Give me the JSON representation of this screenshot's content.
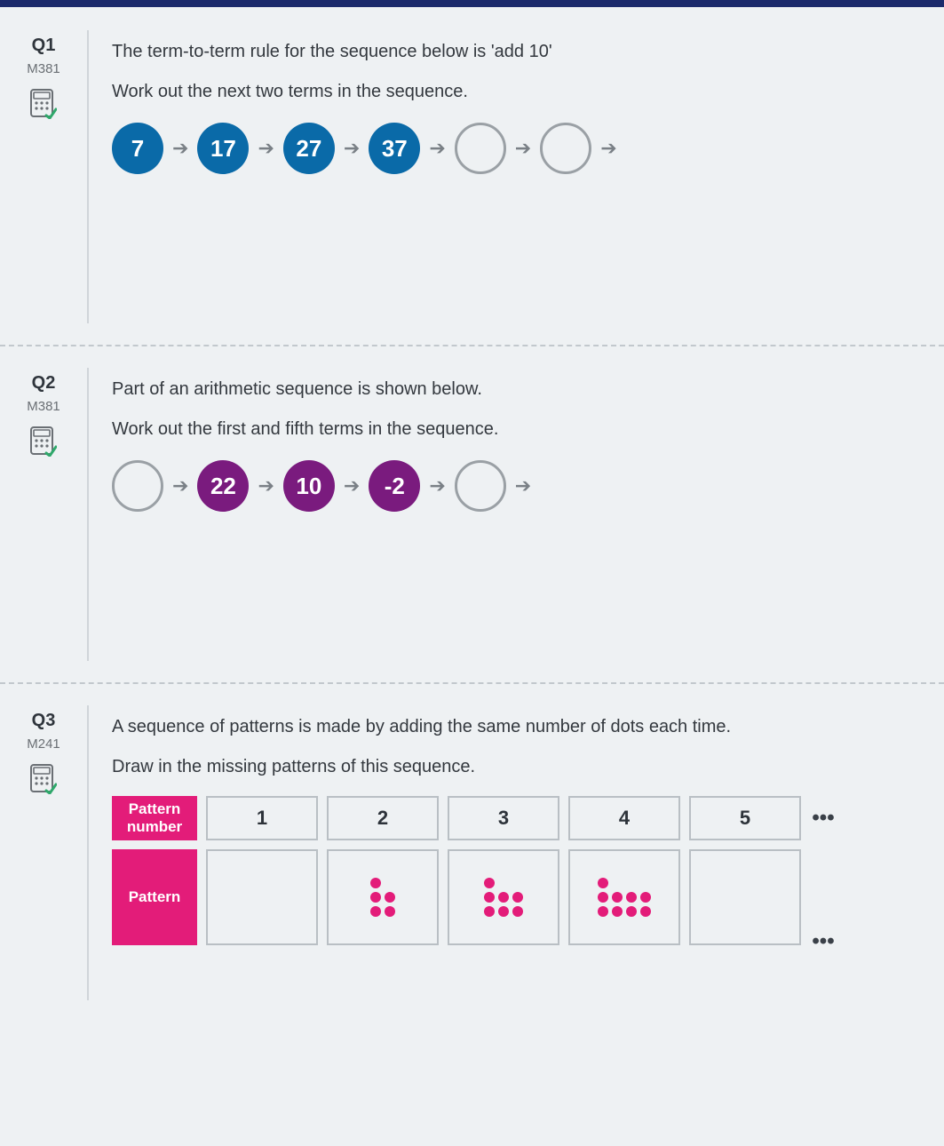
{
  "colors": {
    "topbar": "#1b2a6b",
    "text": "#33383e",
    "muted": "#6a6f74",
    "border": "#b9bfc4",
    "bubble_empty_border": "#9aa0a5",
    "arrow": "#7a8086",
    "q1_bubble": "#0a6aa8",
    "q2_bubble": "#7a1b7e",
    "q3_header": "#e31c79",
    "dot": "#e31c79"
  },
  "questions": [
    {
      "id": "q1",
      "num": "Q1",
      "code": "M381",
      "line1": "The term-to-term rule for the sequence below is 'add 10'",
      "line2": "Work out the next two terms in the sequence.",
      "sequence": {
        "terms": [
          "7",
          "17",
          "27",
          "37",
          "",
          ""
        ],
        "filled": [
          true,
          true,
          true,
          true,
          false,
          false
        ],
        "trailing_arrow": true,
        "bubble_color": "#0a6aa8"
      }
    },
    {
      "id": "q2",
      "num": "Q2",
      "code": "M381",
      "line1": "Part of an arithmetic sequence is shown below.",
      "line2": "Work out the first and fifth terms in the sequence.",
      "sequence": {
        "terms": [
          "",
          "22",
          "10",
          "-2",
          ""
        ],
        "filled": [
          false,
          true,
          true,
          true,
          false
        ],
        "trailing_arrow": true,
        "bubble_color": "#7a1b7e"
      }
    },
    {
      "id": "q3",
      "num": "Q3",
      "code": "M241",
      "line1": "A sequence of patterns is made by adding the same number of dots each time.",
      "line2": "Draw in the missing patterns of this sequence.",
      "table": {
        "row_headers": [
          "Pattern number",
          "Pattern"
        ],
        "header_bg": "#e31c79",
        "columns": [
          "1",
          "2",
          "3",
          "4",
          "5"
        ],
        "patterns": [
          null,
          [
            2,
            2,
            1
          ],
          [
            3,
            3,
            1
          ],
          [
            4,
            4,
            1
          ],
          null
        ],
        "dot_color": "#e31c79",
        "show_ellipsis": true,
        "ellipsis": "•••"
      }
    }
  ]
}
